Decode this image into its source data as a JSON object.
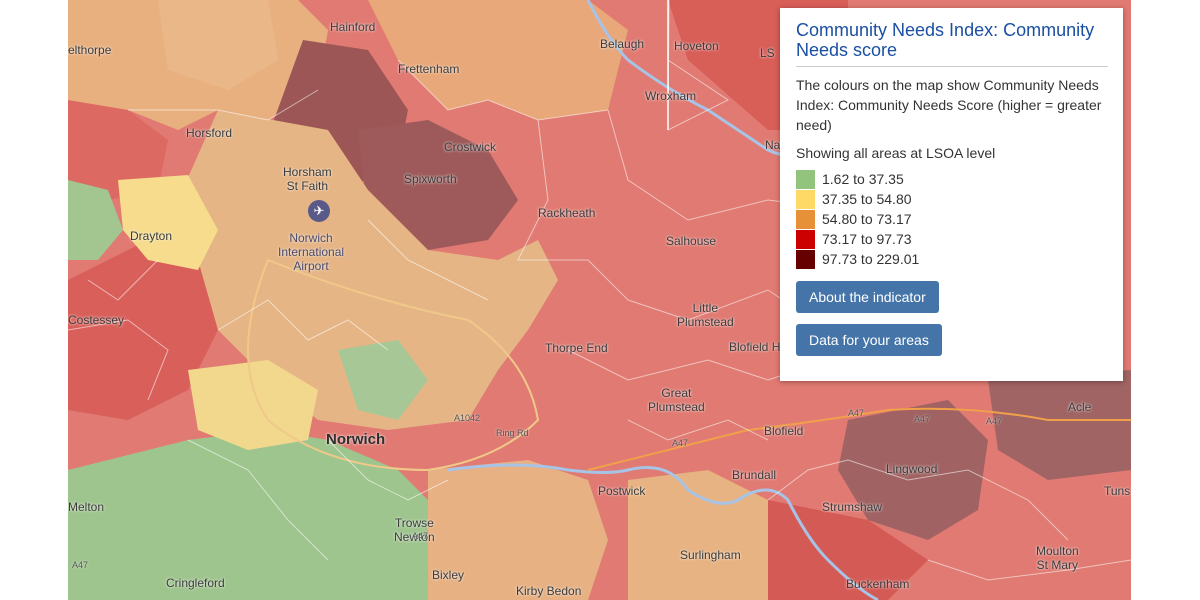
{
  "legend_panel": {
    "title": "Community Needs Index: Community Needs score",
    "description": "The colours on the map show Community Needs Index: Community Needs Score (higher = greater need)",
    "level_text": "Showing all areas at LSOA level",
    "bins": [
      {
        "label": "1.62 to 37.35",
        "color": "#93c47d"
      },
      {
        "label": "37.35 to 54.80",
        "color": "#ffd966"
      },
      {
        "label": "54.80 to 73.17",
        "color": "#e69138"
      },
      {
        "label": "73.17 to 97.73",
        "color": "#cc0000"
      },
      {
        "label": "97.73 to 229.01",
        "color": "#660000"
      }
    ],
    "about_button": "About the indicator",
    "data_button": "Data for your areas"
  },
  "map": {
    "places": {
      "hainford": "Hainford",
      "belaugh": "Belaugh",
      "hoveton": "Hoveton",
      "elthorpe": "elthorpe",
      "frettenham": "Frettenham",
      "wroxham": "Wroxham",
      "horsford": "Horsford",
      "crostwick": "Crostwick",
      "horsham_st_faith": "Horsham\nSt Faith",
      "spixworth": "Spixworth",
      "rackheath": "Rackheath",
      "drayton": "Drayton",
      "norwich_airport": "Norwich\nInternational\nAirport",
      "salhouse": "Salhouse",
      "costessey": "Costessey",
      "little_plumstead": "Little\nPlumstead",
      "thorpe_end": "Thorpe End",
      "blofield_heath": "Blofield H",
      "great_plumstead": "Great\nPlumstead",
      "norwich": "Norwich",
      "blofield": "Blofield",
      "acle": "Acle",
      "lingwood": "Lingwood",
      "postwick": "Postwick",
      "brundall": "Brundall",
      "tuns": "Tuns",
      "melton": "Melton",
      "strumpshaw": "Strumshaw",
      "trowse_newton": "Trowse\nNewton",
      "surlingham": "Surlingham",
      "moulton_st_mary": "Moulton\nSt Mary",
      "cringleford": "Cringleford",
      "bixley": "Bixley",
      "kirby_bedon": "Kirby Bedon",
      "buckenham": "Buckenham",
      "ls": "LS",
      "na": "Na"
    },
    "roads": {
      "a47_a": "A47",
      "a47_b": "A47",
      "a47_c": "A47",
      "a47_d": "A47",
      "a47_e": "A47",
      "a47_f": "A47",
      "a1042": "A1042",
      "ring_rd": "Ring Rd"
    }
  }
}
